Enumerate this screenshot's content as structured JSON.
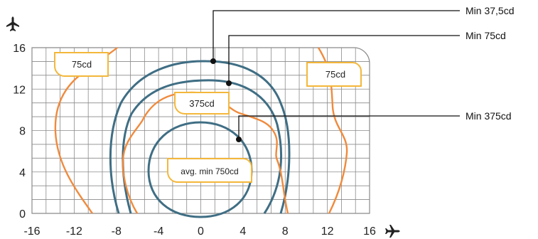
{
  "colors": {
    "grid": "#8a8a8a",
    "iso_orange": "#f08a3c",
    "iso_blue": "#3f6e84",
    "label_box": "#f4b73a",
    "leader": "#111111"
  },
  "icons": {
    "y_axis": "plane-up-icon",
    "x_axis": "plane-right-icon"
  },
  "axes": {
    "x_ticks": [
      "-16",
      "-12",
      "-8",
      "-4",
      "0",
      "4",
      "8",
      "12",
      "16"
    ],
    "y_ticks": [
      "0",
      "4",
      "8",
      "12",
      "16"
    ]
  },
  "contour_labels": {
    "left_outer": "75cd",
    "right_outer": "75cd",
    "middle": "375cd",
    "center": "avg. min 750cd"
  },
  "annotations": [
    {
      "text": "Min 37,5cd"
    },
    {
      "text": "Min 75cd"
    },
    {
      "text": "Min 375cd"
    }
  ]
}
